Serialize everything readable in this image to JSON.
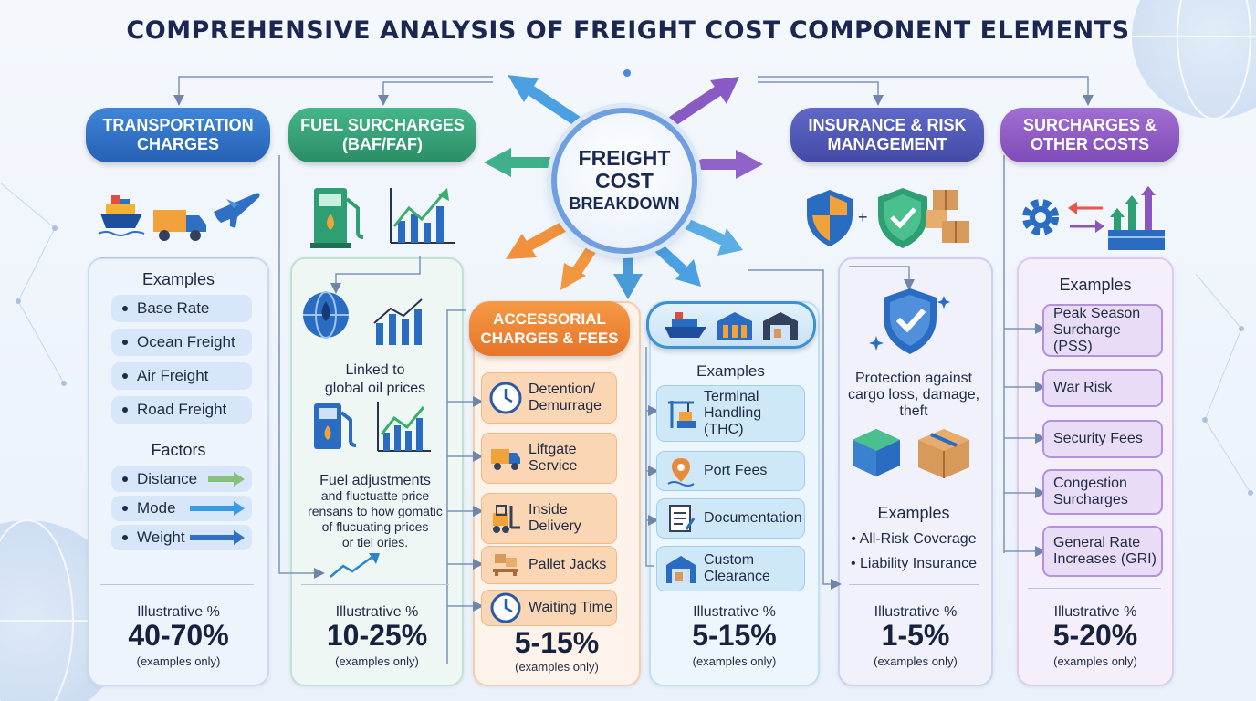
{
  "title": "COMPREHENSIVE ANALYSIS OF FREIGHT COST COMPONENT ELEMENTS",
  "hub": {
    "line1": "FREIGHT",
    "line2": "COST",
    "line3": "BREAKDOWN"
  },
  "colors": {
    "transport": "#2f6fc4",
    "fuel": "#2e9e73",
    "accessorial": "#ee7a2c",
    "handling": "#2b8fcf",
    "insurance": "#4f58b8",
    "surcharges": "#8a55bf"
  },
  "transport": {
    "header": [
      "TRANSPORTATION",
      "CHARGES"
    ],
    "examples_title": "Examples",
    "examples": [
      "Base Rate",
      "Ocean Freight",
      "Air Freight",
      "Road Freight"
    ],
    "factors_title": "Factors",
    "factors": [
      "Distance",
      "Mode",
      "Weight"
    ],
    "pct_label": "Illustrative %",
    "pct": "40-70%",
    "pct_note": "(examples only)",
    "icons": [
      "ship-icon",
      "truck-icon",
      "airplane-icon"
    ]
  },
  "fuel": {
    "header": [
      "FUEL SURCHARGES",
      "(BAF/FAF)"
    ],
    "linked": [
      "Linked to",
      "global oil prices"
    ],
    "adjust": [
      "Fuel adjustments",
      "and fluctuatte price",
      "rensans to how gomatic",
      "of flucuating prices",
      "or tiel ories."
    ],
    "pct_label": "Illustrative %",
    "pct": "10-25%",
    "pct_note": "(examples only)",
    "icons": [
      "fuel-pump-icon",
      "rising-chart-icon",
      "oil-globe-icon"
    ]
  },
  "accessorial": {
    "header": [
      "ACCESSORIAL",
      "CHARGES & FEES"
    ],
    "items": [
      {
        "label": [
          "Detention/",
          "Demurrage"
        ],
        "icon": "clock-icon"
      },
      {
        "label": [
          "Liftgate",
          "Service"
        ],
        "icon": "liftgate-truck-icon"
      },
      {
        "label": [
          "Inside",
          "Delivery"
        ],
        "icon": "forklift-icon"
      },
      {
        "label": [
          "Pallet Jacks"
        ],
        "icon": "pallet-icon"
      },
      {
        "label": [
          "Waiting Time"
        ],
        "icon": "clock-icon"
      }
    ],
    "pct": "5-15%",
    "pct_note": "(examples only)"
  },
  "handling": {
    "examples_title": "Examples",
    "items": [
      {
        "label": [
          "Terminal",
          "Handling",
          "(THC)"
        ],
        "icon": "crane-icon"
      },
      {
        "label": [
          "Port Fees"
        ],
        "icon": "port-pin-icon"
      },
      {
        "label": [
          "Documentation"
        ],
        "icon": "document-icon"
      },
      {
        "label": [
          "Custom",
          "Clearance"
        ],
        "icon": "warehouse-icon"
      }
    ],
    "pct_label": "Illustrative %",
    "pct": "5-15%",
    "pct_note": "(examples only)",
    "icons": [
      "cargo-ship-icon",
      "terminal-building-icon",
      "warehouse-icon"
    ]
  },
  "insurance": {
    "header": [
      "INSURANCE & RISK",
      "MANAGEMENT"
    ],
    "protection": [
      "Protection against",
      "cargo loss, damage,",
      "theft"
    ],
    "examples_title": "Examples",
    "examples": [
      "All-Risk Coverage",
      "Liability Insurance"
    ],
    "pct_label": "Illustrative %",
    "pct": "1-5%",
    "pct_note": "(examples only)",
    "icons": [
      "shield-icon",
      "shield-check-icon",
      "boxes-icon"
    ]
  },
  "surcharges": {
    "header": [
      "SURCHARGES &",
      "OTHER COSTS"
    ],
    "examples_title": "Examples",
    "items": [
      [
        "Peak Season",
        "Surcharge (PSS)"
      ],
      [
        "War Risk"
      ],
      [
        "Security Fees"
      ],
      [
        "Congestion",
        "Surcharges"
      ],
      [
        "General Rate",
        "Increases (GRI)"
      ]
    ],
    "pct_label": "Illustrative %",
    "pct": "5-20%",
    "pct_note": "(examples only)",
    "icons": [
      "gear-icon",
      "exchange-arrows-icon",
      "rising-arrows-icon"
    ]
  }
}
